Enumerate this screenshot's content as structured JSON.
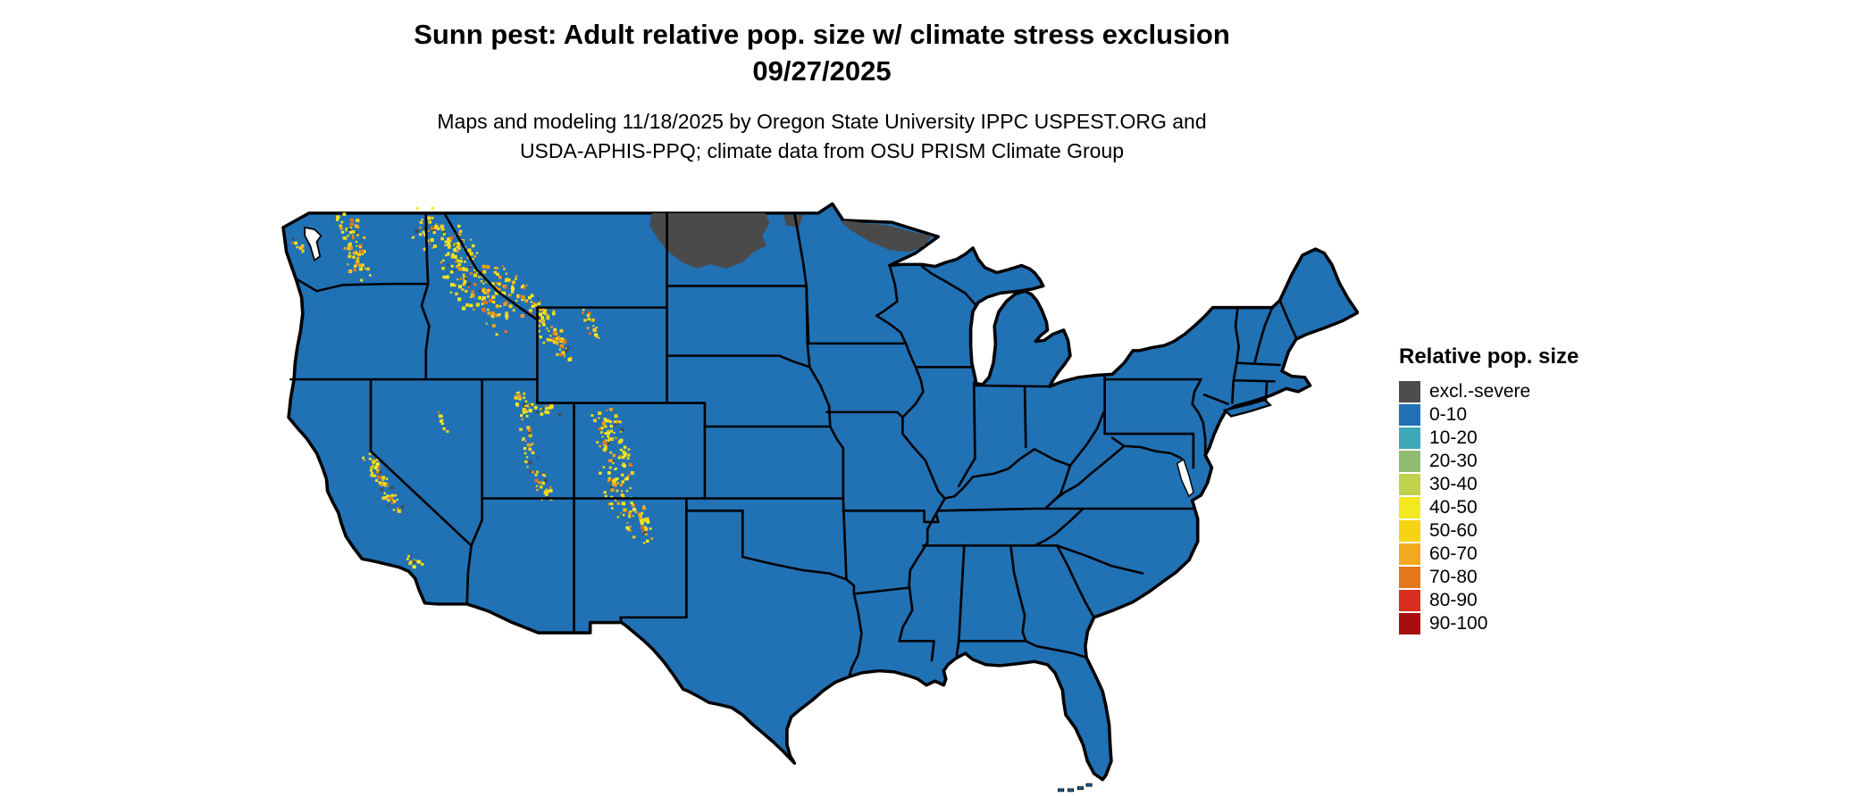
{
  "header": {
    "title_line1": "Sunn pest: Adult relative pop. size w/ climate stress exclusion",
    "title_line2": "09/27/2025",
    "subtitle_line1": "Maps and modeling 11/18/2025 by Oregon State University IPPC USPEST.ORG and",
    "subtitle_line2": "USDA-APHIS-PPQ; climate data from OSU PRISM Climate Group"
  },
  "legend": {
    "title": "Relative pop. size",
    "entries": [
      {
        "label": "excl.-severe",
        "color": "#4d4d4d"
      },
      {
        "label": "0-10",
        "color": "#2171b5"
      },
      {
        "label": "10-20",
        "color": "#3ea8b8"
      },
      {
        "label": "20-30",
        "color": "#8fbc72"
      },
      {
        "label": "30-40",
        "color": "#c0d24e"
      },
      {
        "label": "40-50",
        "color": "#f2ea1f"
      },
      {
        "label": "50-60",
        "color": "#f7d413"
      },
      {
        "label": "60-70",
        "color": "#f3a81f"
      },
      {
        "label": "70-80",
        "color": "#e2791b"
      },
      {
        "label": "80-90",
        "color": "#d7301f"
      },
      {
        "label": "90-100",
        "color": "#a80d10"
      }
    ]
  },
  "map": {
    "land_color": "#2171b5",
    "water_color": "#ffffff",
    "state_border_color": "#000000",
    "excluded_color": "#4a4a4a",
    "excluded_regions": [
      "northern Montana / North Dakota Canada border",
      "northern Minnesota"
    ],
    "speckled_regions": [
      "WA Cascades",
      "Idaho / NW Montana Rockies",
      "Yellowstone-Bighorn",
      "Utah Wasatch",
      "Colorado Rockies",
      "Sierra Nevada"
    ],
    "speckle_colors": [
      "#f7d413",
      "#f2ea1f",
      "#f0a01e",
      "#e0761a",
      "#4a4a4a"
    ]
  }
}
